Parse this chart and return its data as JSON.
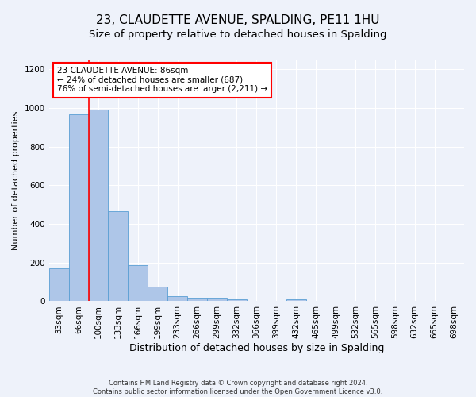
{
  "title": "23, CLAUDETTE AVENUE, SPALDING, PE11 1HU",
  "subtitle": "Size of property relative to detached houses in Spalding",
  "xlabel": "Distribution of detached houses by size in Spalding",
  "ylabel": "Number of detached properties",
  "categories": [
    "33sqm",
    "66sqm",
    "100sqm",
    "133sqm",
    "166sqm",
    "199sqm",
    "233sqm",
    "266sqm",
    "299sqm",
    "332sqm",
    "366sqm",
    "399sqm",
    "432sqm",
    "465sqm",
    "499sqm",
    "532sqm",
    "565sqm",
    "598sqm",
    "632sqm",
    "665sqm",
    "698sqm"
  ],
  "values": [
    170,
    965,
    990,
    465,
    185,
    75,
    28,
    20,
    17,
    10,
    0,
    0,
    12,
    0,
    0,
    0,
    0,
    0,
    0,
    0,
    0
  ],
  "bar_color": "#aec6e8",
  "bar_edge_color": "#5a9fd4",
  "redline_x": 1.5,
  "annotation_text": "23 CLAUDETTE AVENUE: 86sqm\n← 24% of detached houses are smaller (687)\n76% of semi-detached houses are larger (2,211) →",
  "annotation_box_color": "white",
  "annotation_box_edge_color": "red",
  "redline_color": "red",
  "ylim": [
    0,
    1250
  ],
  "yticks": [
    0,
    200,
    400,
    600,
    800,
    1000,
    1200
  ],
  "footer": "Contains HM Land Registry data © Crown copyright and database right 2024.\nContains public sector information licensed under the Open Government Licence v3.0.",
  "background_color": "#eef2fa",
  "grid_color": "#ffffff",
  "title_fontsize": 11,
  "subtitle_fontsize": 9.5,
  "xlabel_fontsize": 9,
  "ylabel_fontsize": 8,
  "tick_fontsize": 7.5,
  "annotation_fontsize": 7.5,
  "footer_fontsize": 6
}
